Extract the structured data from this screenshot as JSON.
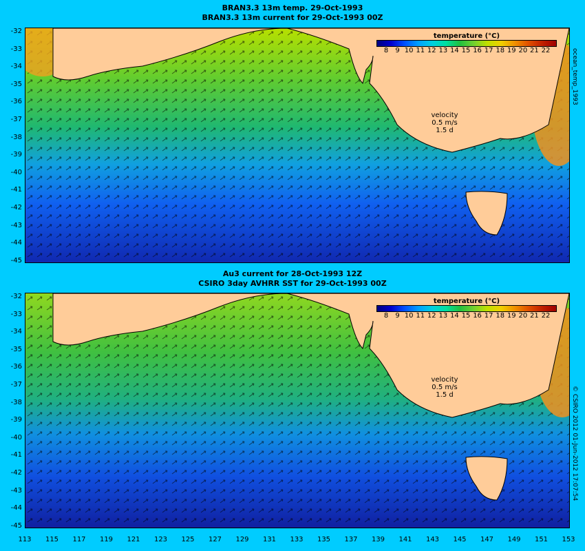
{
  "top_panel": {
    "title_line1": "BRAN3.3 13m temp. 29-Oct-1993",
    "title_line2": "BRAN3.3 13m current for 29-Oct-1993 00Z",
    "side_label": "ocean_temp_1993"
  },
  "bottom_panel": {
    "title_line1": "Au3 current for 28-Oct-1993 12Z",
    "title_line2": "CSIRO 3day AVHRR SST for 29-Oct-1993 00Z",
    "side_label": "© CSIRO 2012  01-Jun-2012 17:07:54"
  },
  "colorbar": {
    "title": "temperature (°C)",
    "labels": [
      "8",
      "9",
      "10",
      "11",
      "12",
      "13",
      "14",
      "15",
      "16",
      "17",
      "18",
      "19",
      "20",
      "21",
      "22"
    ]
  },
  "velocity_legend": {
    "label": "velocity",
    "speed": "0.5 m/s",
    "time": "1.5 d"
  },
  "map_axes": {
    "lat_labels": [
      "-32",
      "-33",
      "-34",
      "-35",
      "-36",
      "-37",
      "-38",
      "-39",
      "-40",
      "-41",
      "-42",
      "-43",
      "-44",
      "-45"
    ],
    "lon_labels": [
      "113",
      "115",
      "117",
      "119",
      "121",
      "123",
      "125",
      "127",
      "129",
      "131",
      "133",
      "135",
      "137",
      "139",
      "141",
      "143",
      "145",
      "147",
      "149",
      "151",
      "153"
    ]
  },
  "colors": {
    "background": "#00ccff",
    "land": "#ffcc99",
    "warm": "#f08020",
    "mid": "#50c040",
    "cool": "#0080ff",
    "cold": "#0020a0"
  }
}
